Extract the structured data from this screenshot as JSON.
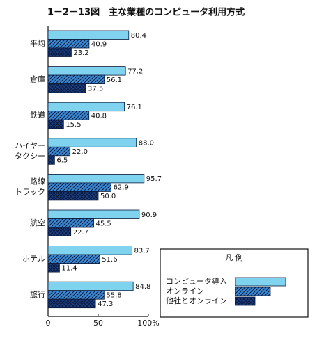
{
  "chart_data": {
    "type": "bar",
    "orientation": "horizontal",
    "title": "1－2－13図　主な業種のコンピュータ利用方式",
    "categories": [
      "平均",
      "倉庫",
      "鉄道",
      "ハイヤー\nタクシー",
      "路線\nトラック",
      "航空",
      "ホテル",
      "旅行"
    ],
    "series": [
      {
        "name": "コンピュータ導入",
        "color": "#7fd3ef",
        "pattern": "solid",
        "values": [
          80.4,
          77.2,
          76.1,
          88.0,
          95.7,
          90.9,
          83.7,
          84.8
        ],
        "value_labels": [
          "80.4",
          "77.2",
          "76.1",
          "88.0",
          "95.7",
          "90.9",
          "83.7",
          "84.8"
        ]
      },
      {
        "name": "オンライン",
        "color": "#3a8ad6",
        "pattern": "hatch",
        "values": [
          40.9,
          56.1,
          40.8,
          22.0,
          62.9,
          45.5,
          51.6,
          55.8
        ],
        "value_labels": [
          "40.9",
          "56.1",
          "40.8",
          "22.0",
          "62.9",
          "45.5",
          "51.6",
          "55.8"
        ]
      },
      {
        "name": "他社とオンライン",
        "color": "#1c3f86",
        "pattern": "cross",
        "values": [
          23.2,
          37.5,
          15.5,
          6.5,
          50.0,
          22.7,
          11.4,
          47.3
        ],
        "value_labels": [
          "23.2",
          "37.5",
          "15.5",
          "6.5",
          "50.0",
          "22.7",
          "11.4",
          "47.3"
        ]
      }
    ],
    "xlim": [
      0,
      100
    ],
    "xticks": [
      0,
      50,
      {
        "value": 100,
        "label": "100%"
      }
    ],
    "legend_title": "凡 例",
    "legend_position": "lower right"
  }
}
